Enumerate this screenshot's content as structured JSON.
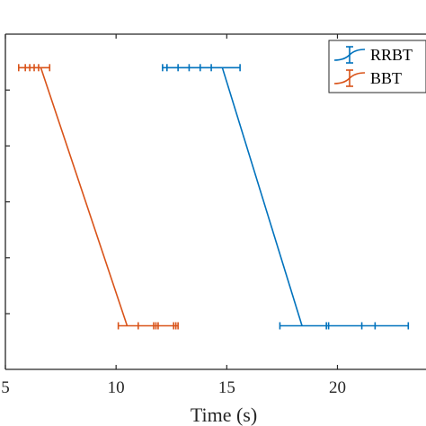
{
  "chart_data": {
    "type": "line",
    "title": "",
    "xlabel": "Time (s)",
    "ylabel": "",
    "xlim": [
      5,
      24
    ],
    "ylim": [
      0,
      1
    ],
    "xticks": [
      5,
      10,
      15,
      20
    ],
    "xtick_labels": [
      "5",
      "10",
      "15",
      "20"
    ],
    "grid": false,
    "legend_position": "top-right",
    "series": [
      {
        "name": "RRBT",
        "color": "#0072BD",
        "x": [
          14.8,
          18.4
        ],
        "y": [
          0.9,
          0.13
        ],
        "errorbars": [
          {
            "center": 14.8,
            "y": 0.9,
            "low": 12.1,
            "high": 15.6,
            "ticks": [
              12.3,
              12.8,
              13.3,
              13.8,
              14.3
            ]
          },
          {
            "center": 18.4,
            "y": 0.13,
            "low": 17.4,
            "high": 23.2,
            "ticks": [
              19.5,
              19.6,
              21.1,
              21.7
            ]
          }
        ]
      },
      {
        "name": "BBT",
        "color": "#D95319",
        "x": [
          6.6,
          10.5
        ],
        "y": [
          0.9,
          0.13
        ],
        "errorbars": [
          {
            "center": 6.6,
            "y": 0.9,
            "low": 5.6,
            "high": 7.0,
            "ticks": [
              5.9,
              6.1,
              6.3,
              6.5
            ]
          },
          {
            "center": 10.5,
            "y": 0.13,
            "low": 10.1,
            "high": 12.8,
            "ticks": [
              11.0,
              11.7,
              11.8,
              11.9,
              12.6,
              12.7
            ]
          }
        ]
      }
    ]
  }
}
